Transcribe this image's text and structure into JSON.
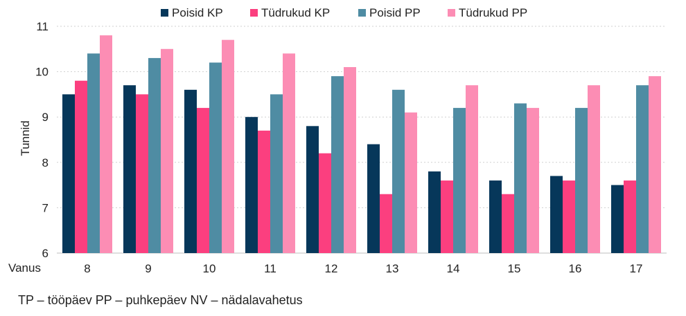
{
  "chart_data": {
    "type": "bar",
    "ylabel": "Tunnid",
    "xlabel": "Vanus",
    "ylim": [
      6,
      11
    ],
    "yticks": [
      6,
      7,
      8,
      9,
      10,
      11
    ],
    "grid": true,
    "legend_position": "top",
    "categories": [
      "8",
      "9",
      "10",
      "11",
      "12",
      "13",
      "14",
      "15",
      "16",
      "17"
    ],
    "series": [
      {
        "name": "Poisid KP",
        "color": "#06375a",
        "values": [
          9.5,
          9.7,
          9.6,
          9.0,
          8.8,
          8.4,
          7.8,
          7.6,
          7.7,
          7.5
        ]
      },
      {
        "name": "Tüdrukud KP",
        "color": "#fb3f7f",
        "values": [
          9.8,
          9.5,
          9.2,
          8.7,
          8.2,
          7.3,
          7.6,
          7.3,
          7.6,
          7.6
        ]
      },
      {
        "name": "Poisid PP",
        "color": "#4f8ca3",
        "values": [
          10.4,
          10.3,
          10.2,
          9.5,
          9.9,
          9.6,
          9.2,
          9.3,
          9.2,
          9.7
        ]
      },
      {
        "name": "Tüdrukud PP",
        "color": "#fc8db4",
        "values": [
          10.8,
          10.5,
          10.7,
          10.4,
          10.1,
          9.1,
          9.7,
          9.2,
          9.7,
          9.9
        ]
      }
    ]
  },
  "footnote": "TP – tööpäev  PP – puhkepäev  NV – nädalavahetus"
}
